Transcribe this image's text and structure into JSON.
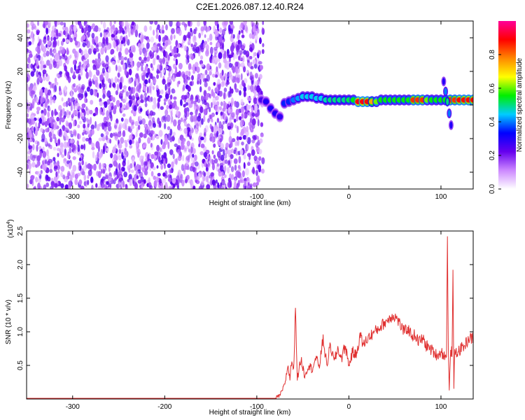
{
  "title": "C2E1.2026.087.12.40.R24",
  "chart_data": [
    {
      "type": "heatmap",
      "xlabel": "Height of straight line (km)",
      "ylabel": "Frequency (Hz)",
      "xlim": [
        -350,
        135
      ],
      "ylim": [
        -50,
        50
      ],
      "x_ticks": [
        -300,
        -200,
        -100,
        0,
        100
      ],
      "x_tick_labels": [
        "-300",
        "-200",
        "-100",
        "0",
        "100"
      ],
      "y_ticks": [
        -40,
        -20,
        0,
        20,
        40
      ],
      "y_tick_labels": [
        "-40",
        "-20",
        "0",
        "20",
        "40"
      ],
      "colorbar": {
        "label": "Normalized spectral amplitude",
        "range": [
          0,
          1
        ],
        "ticks": [
          0,
          0.2,
          0.4,
          0.6,
          0.8
        ],
        "tick_labels": [
          "0.0",
          "0.2",
          "0.4",
          "0.6",
          "0.8"
        ],
        "colors": [
          "#ffffff",
          "#cc88ff",
          "#6600ee",
          "#0000ff",
          "#00ccff",
          "#00ee00",
          "#ffff00",
          "#ff8800",
          "#ff0000",
          "#ff0099"
        ]
      },
      "noise_region": {
        "x": [
          -350,
          -93
        ],
        "y": [
          -50,
          50
        ],
        "amplitude": [
          0.05,
          0.25
        ]
      },
      "signal_trace": [
        {
          "x": -95,
          "y": 3,
          "width": 4,
          "amplitude": 0.25
        },
        {
          "x": -90,
          "y": 2,
          "width": 4,
          "amplitude": 0.3
        },
        {
          "x": -85,
          "y": -2,
          "width": 4,
          "amplitude": 0.3
        },
        {
          "x": -80,
          "y": -5,
          "width": 4,
          "amplitude": 0.3
        },
        {
          "x": -75,
          "y": -7,
          "width": 4,
          "amplitude": 0.28
        },
        {
          "x": -70,
          "y": 1,
          "width": 4,
          "amplitude": 0.35
        },
        {
          "x": -65,
          "y": 2,
          "width": 4,
          "amplitude": 0.35
        },
        {
          "x": -60,
          "y": 3,
          "width": 4,
          "amplitude": 0.4
        },
        {
          "x": -55,
          "y": 4,
          "width": 4,
          "amplitude": 0.42
        },
        {
          "x": -50,
          "y": 5,
          "width": 4,
          "amplitude": 0.45
        },
        {
          "x": -45,
          "y": 5,
          "width": 4,
          "amplitude": 0.45
        },
        {
          "x": -40,
          "y": 5,
          "width": 4,
          "amplitude": 0.45
        },
        {
          "x": -35,
          "y": 4,
          "width": 4,
          "amplitude": 0.45
        },
        {
          "x": -30,
          "y": 4,
          "width": 4,
          "amplitude": 0.45
        },
        {
          "x": -25,
          "y": 3,
          "width": 4,
          "amplitude": 0.48
        },
        {
          "x": -20,
          "y": 3,
          "width": 4,
          "amplitude": 0.5
        },
        {
          "x": -15,
          "y": 3,
          "width": 4,
          "amplitude": 0.5
        },
        {
          "x": -10,
          "y": 3,
          "width": 4,
          "amplitude": 0.5
        },
        {
          "x": -5,
          "y": 3,
          "width": 4,
          "amplitude": 0.5
        },
        {
          "x": 0,
          "y": 3,
          "width": 4,
          "amplitude": 0.52
        },
        {
          "x": 5,
          "y": 3,
          "width": 4,
          "amplitude": 0.55
        },
        {
          "x": 10,
          "y": 2,
          "width": 4,
          "amplitude": 0.9
        },
        {
          "x": 15,
          "y": 2,
          "width": 4,
          "amplitude": 0.9
        },
        {
          "x": 20,
          "y": 2,
          "width": 4,
          "amplitude": 0.88
        },
        {
          "x": 25,
          "y": 2,
          "width": 4,
          "amplitude": 0.75
        },
        {
          "x": 30,
          "y": 2,
          "width": 4,
          "amplitude": 0.6
        },
        {
          "x": 35,
          "y": 3,
          "width": 4,
          "amplitude": 0.55
        },
        {
          "x": 40,
          "y": 3,
          "width": 4,
          "amplitude": 0.55
        },
        {
          "x": 45,
          "y": 3,
          "width": 4,
          "amplitude": 0.55
        },
        {
          "x": 50,
          "y": 3,
          "width": 4,
          "amplitude": 0.55
        },
        {
          "x": 55,
          "y": 3,
          "width": 4,
          "amplitude": 0.55
        },
        {
          "x": 60,
          "y": 3,
          "width": 4,
          "amplitude": 0.55
        },
        {
          "x": 65,
          "y": 3,
          "width": 4,
          "amplitude": 0.55
        },
        {
          "x": 70,
          "y": 3,
          "width": 4,
          "amplitude": 0.85
        },
        {
          "x": 75,
          "y": 3,
          "width": 4,
          "amplitude": 0.85
        },
        {
          "x": 80,
          "y": 3,
          "width": 4,
          "amplitude": 0.85
        },
        {
          "x": 85,
          "y": 3,
          "width": 4,
          "amplitude": 0.6
        },
        {
          "x": 90,
          "y": 3,
          "width": 4,
          "amplitude": 0.55
        },
        {
          "x": 95,
          "y": 3,
          "width": 4,
          "amplitude": 0.55
        },
        {
          "x": 100,
          "y": 3,
          "width": 4,
          "amplitude": 0.55
        },
        {
          "x": 105,
          "y": 3,
          "width": 4,
          "amplitude": 0.55
        },
        {
          "x": 110,
          "y": 3,
          "width": 4,
          "amplitude": 0.85
        },
        {
          "x": 115,
          "y": 3,
          "width": 4,
          "amplitude": 0.85
        },
        {
          "x": 120,
          "y": 3,
          "width": 4,
          "amplitude": 0.88
        },
        {
          "x": 125,
          "y": 3,
          "width": 4,
          "amplitude": 0.88
        },
        {
          "x": 130,
          "y": 3,
          "width": 4,
          "amplitude": 0.88
        },
        {
          "x": 135,
          "y": 3,
          "width": 4,
          "amplitude": 0.88
        }
      ],
      "signal_streak": [
        {
          "x": 103,
          "y": 14,
          "amplitude": 0.3
        },
        {
          "x": 105,
          "y": 8,
          "amplitude": 0.4
        },
        {
          "x": 107,
          "y": 2,
          "amplitude": 0.5
        },
        {
          "x": 109,
          "y": -5,
          "amplitude": 0.4
        },
        {
          "x": 111,
          "y": -12,
          "amplitude": 0.3
        }
      ]
    },
    {
      "type": "line",
      "xlabel": "Height of straight line (km)",
      "ylabel": "SNR (10 * v/v)",
      "y_multiplier_label": "(x10",
      "y_multiplier_exponent": "4",
      "y_multiplier_close": ")",
      "xlim": [
        -350,
        135
      ],
      "ylim": [
        0,
        2.5
      ],
      "x_ticks": [
        -300,
        -200,
        -100,
        0,
        100
      ],
      "x_tick_labels": [
        "-300",
        "-200",
        "-100",
        "0",
        "100"
      ],
      "y_ticks": [
        0.5,
        1.0,
        1.5,
        2.0,
        2.5
      ],
      "y_tick_labels": [
        "0.5",
        "1.0",
        "1.5",
        "2.0",
        "2.5"
      ],
      "color": "#e03030",
      "x": [
        -350,
        -300,
        -250,
        -200,
        -150,
        -100,
        -80,
        -75,
        -70,
        -66,
        -64,
        -62,
        -60,
        -58,
        -56,
        -52,
        -48,
        -44,
        -40,
        -36,
        -32,
        -28,
        -24,
        -20,
        -16,
        -12,
        -8,
        -4,
        0,
        4,
        8,
        12,
        16,
        20,
        24,
        28,
        32,
        36,
        40,
        44,
        48,
        52,
        56,
        60,
        64,
        68,
        72,
        76,
        80,
        84,
        88,
        92,
        96,
        100,
        104,
        106,
        107,
        108,
        109,
        110,
        111,
        112,
        113,
        114,
        115,
        118,
        122,
        126,
        130,
        135
      ],
      "y": [
        0.01,
        0.01,
        0.01,
        0.01,
        0.01,
        0.01,
        0.01,
        0.05,
        0.2,
        0.5,
        0.3,
        0.6,
        0.4,
        1.4,
        0.3,
        0.6,
        0.35,
        0.5,
        0.45,
        0.6,
        0.5,
        0.9,
        0.5,
        0.8,
        0.55,
        0.75,
        0.6,
        0.8,
        0.5,
        0.7,
        0.65,
        0.95,
        0.8,
        0.9,
        0.95,
        1.0,
        1.05,
        1.1,
        1.15,
        1.2,
        1.25,
        1.2,
        1.1,
        1.0,
        1.05,
        0.95,
        0.95,
        0.85,
        0.9,
        0.8,
        0.75,
        0.7,
        0.65,
        0.7,
        0.65,
        0.6,
        2.5,
        0.7,
        0.1,
        0.6,
        0.7,
        0.7,
        1.9,
        0.15,
        0.7,
        0.7,
        0.75,
        0.8,
        0.9,
        0.9
      ]
    }
  ]
}
